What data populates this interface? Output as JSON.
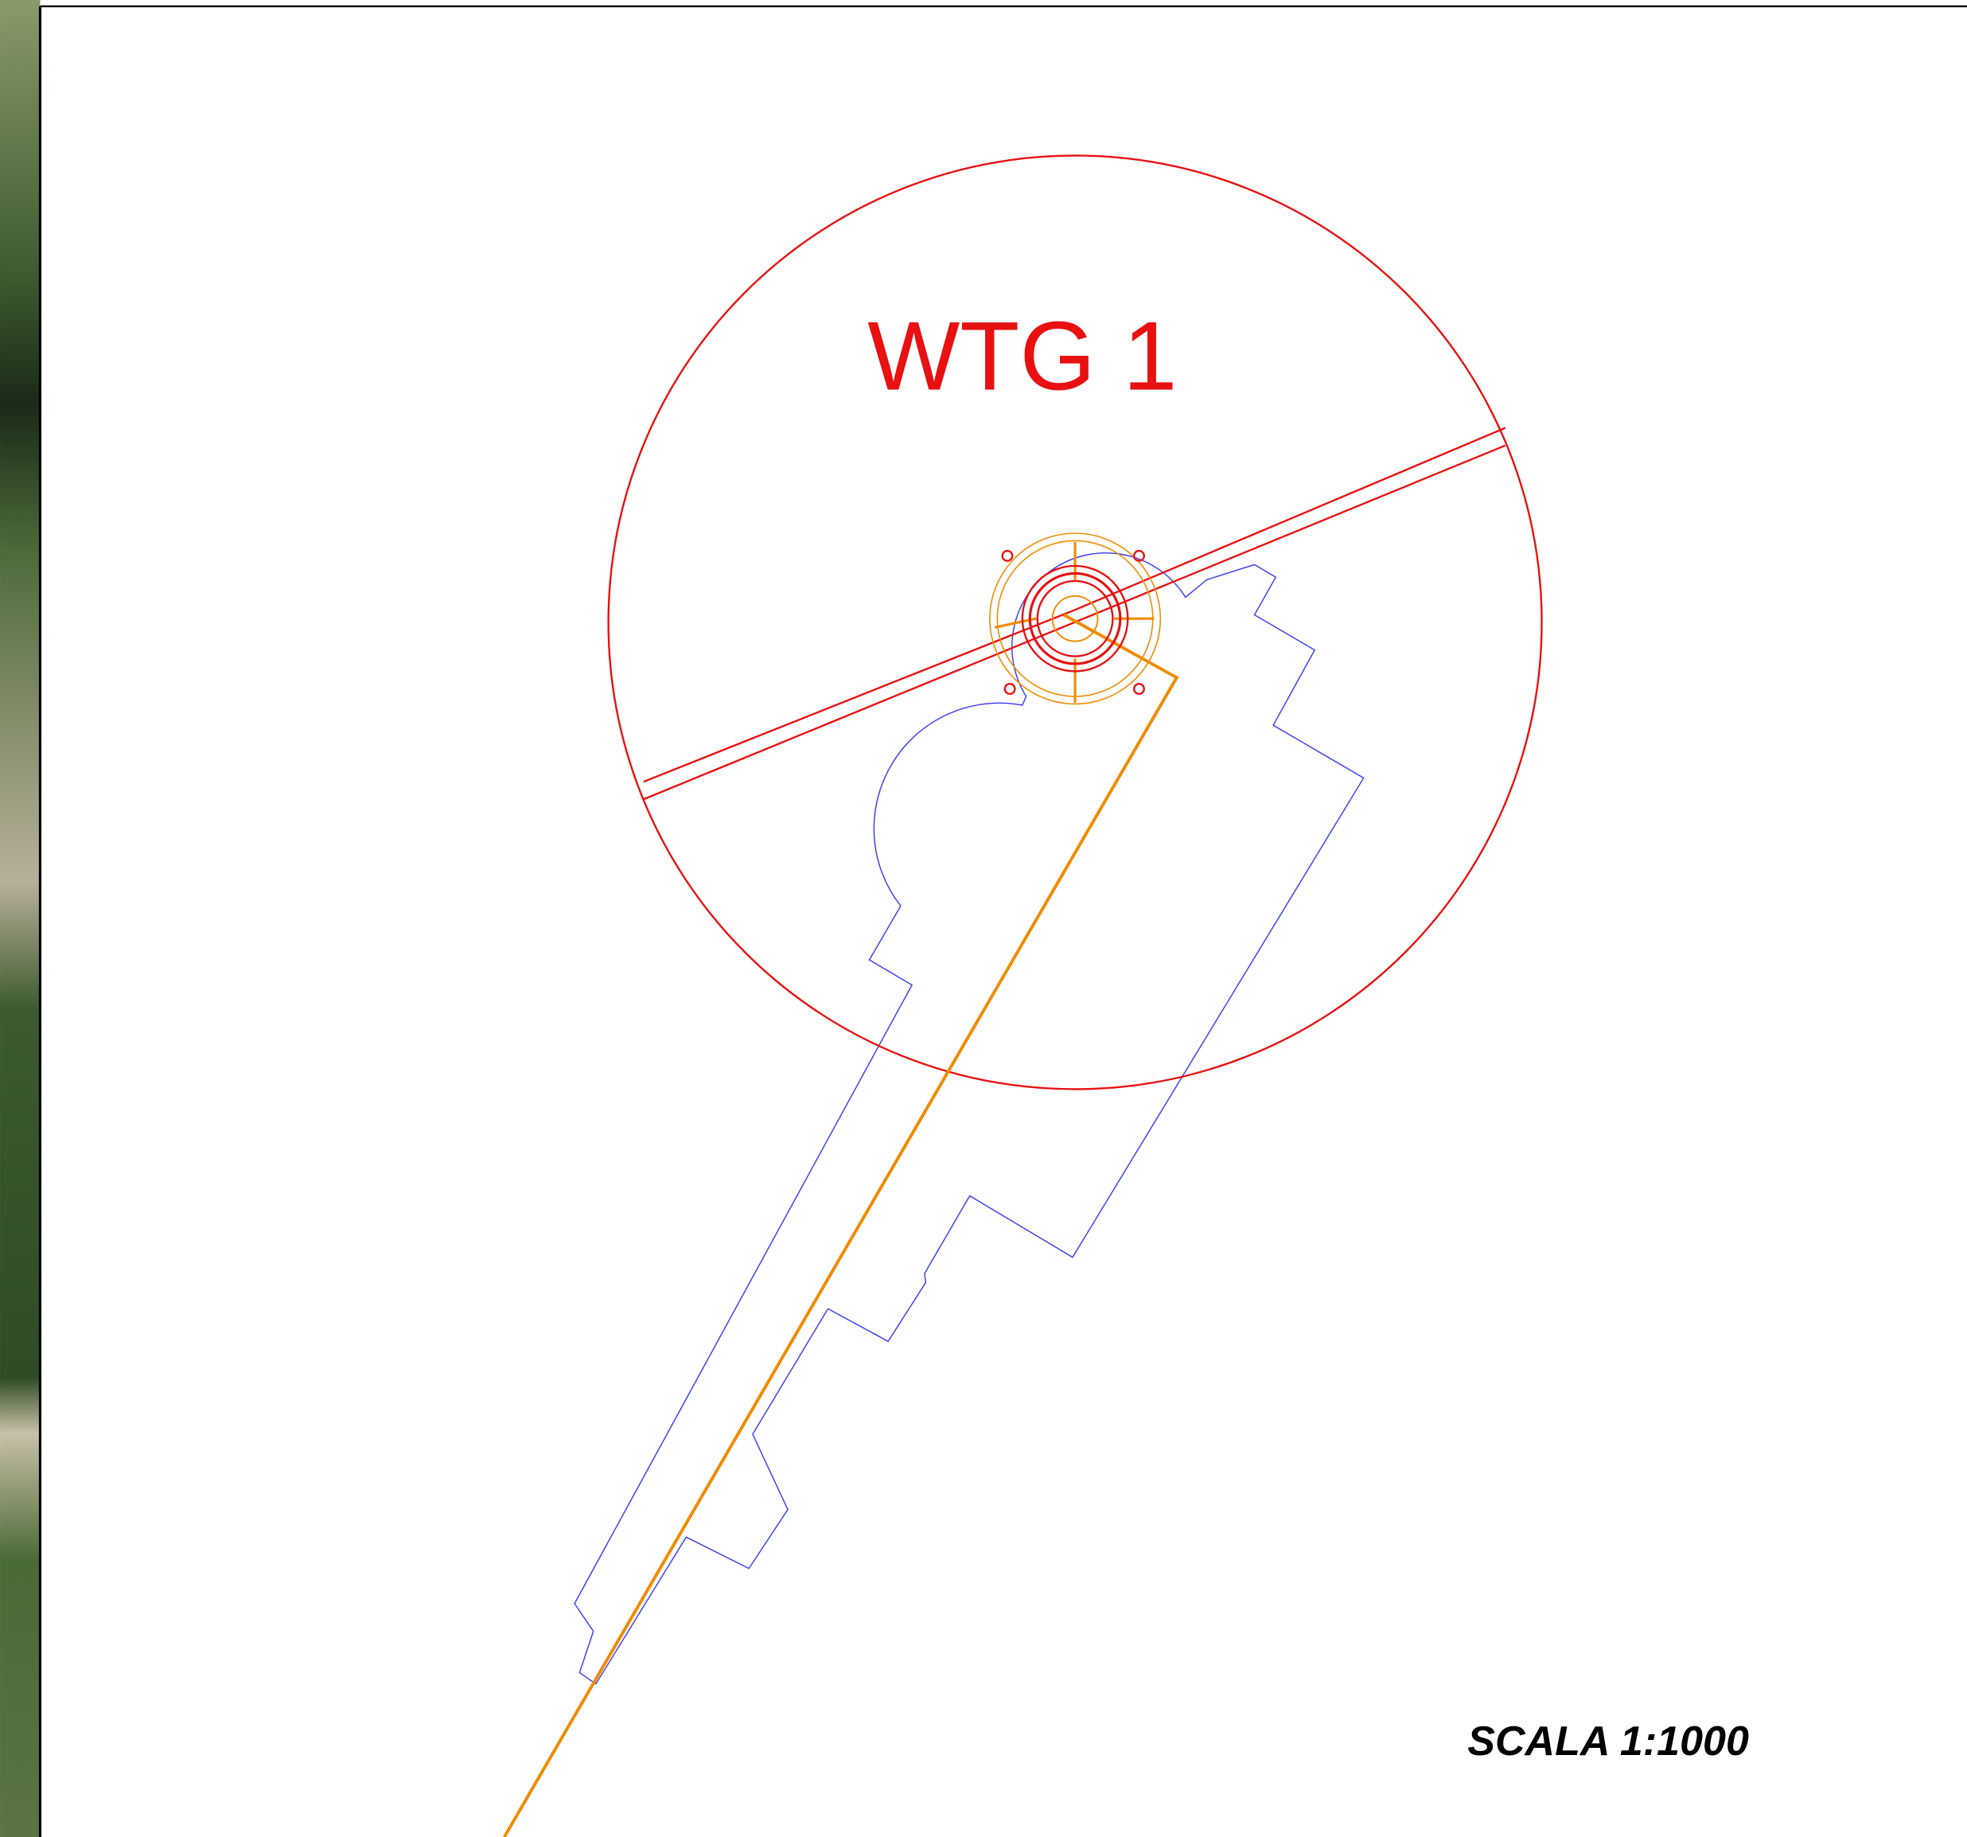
{
  "labels": {
    "turbine": "WTG 1",
    "scale": "SCALA 1:1000"
  }
}
